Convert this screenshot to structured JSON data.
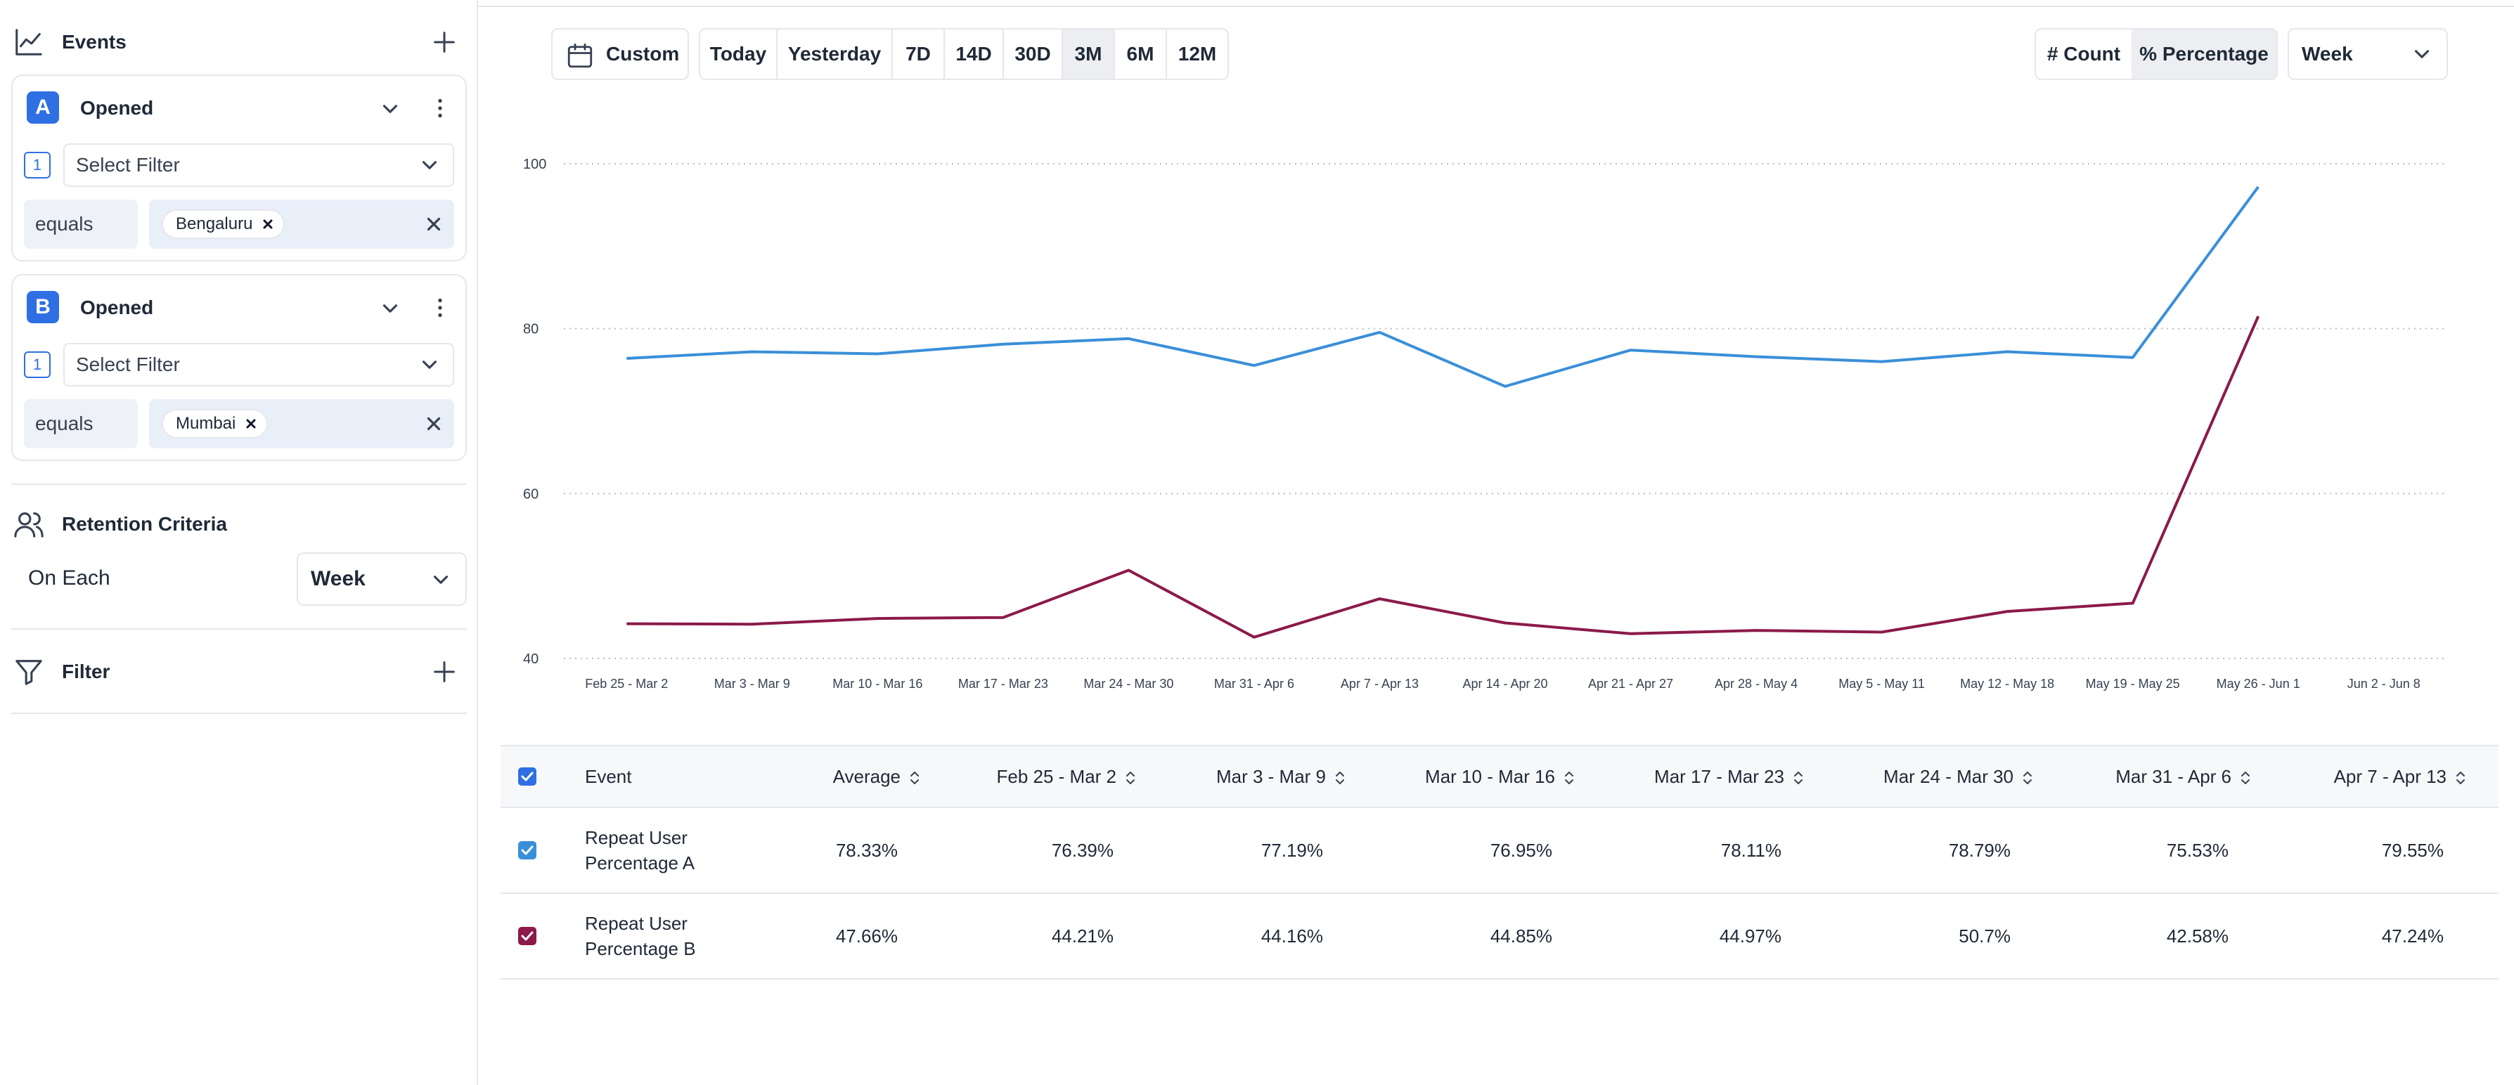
{
  "sidebar": {
    "events_title": "Events",
    "events": [
      {
        "badge": "A",
        "name": "Opened",
        "filter_num": "1",
        "filter_placeholder": "Select Filter",
        "operator": "equals",
        "value": "Bengaluru"
      },
      {
        "badge": "B",
        "name": "Opened",
        "filter_num": "1",
        "filter_placeholder": "Select Filter",
        "operator": "equals",
        "value": "Mumbai"
      }
    ],
    "retention_title": "Retention Criteria",
    "on_each_label": "On Each",
    "on_each_value": "Week",
    "filter_title": "Filter"
  },
  "toolbar": {
    "custom_label": "Custom",
    "ranges": [
      "Today",
      "Yesterday",
      "7D",
      "14D",
      "30D",
      "3M",
      "6M",
      "12M"
    ],
    "active_range": "3M",
    "modes": [
      "# Count",
      "% Percentage"
    ],
    "active_mode": "% Percentage",
    "period": "Week"
  },
  "colors": {
    "series_a": "#3a8fd9",
    "series_b": "#8b1a4a",
    "accent": "#2f6fe4"
  },
  "chart_data": {
    "type": "line",
    "categories": [
      "Feb 25 - Mar 2",
      "Mar 3 - Mar 9",
      "Mar 10 - Mar 16",
      "Mar 17 - Mar 23",
      "Mar 24 - Mar 30",
      "Mar 31 - Apr 6",
      "Apr 7 - Apr 13",
      "Apr 14 - Apr 20",
      "Apr 21 - Apr 27",
      "Apr 28 - May 4",
      "May 5 - May 11",
      "May 12 - May 18",
      "May 19 - May 25",
      "May 26 - Jun 1",
      "Jun 2 - Jun 8"
    ],
    "series": [
      {
        "name": "Repeat User Percentage A",
        "values": [
          76.39,
          77.19,
          76.95,
          78.11,
          78.79,
          75.53,
          79.55,
          73.0,
          77.4,
          76.6,
          76.0,
          77.2,
          76.5,
          97.2,
          null
        ]
      },
      {
        "name": "Repeat User Percentage B",
        "values": [
          44.21,
          44.16,
          44.85,
          44.97,
          50.7,
          42.58,
          47.24,
          44.3,
          43.0,
          43.4,
          43.2,
          45.7,
          46.7,
          81.5,
          null
        ]
      }
    ],
    "yticks": [
      40,
      60,
      80,
      100
    ],
    "ylim": [
      40,
      100
    ],
    "grid": true,
    "title": "",
    "xlabel": "",
    "ylabel": ""
  },
  "table": {
    "event_header": "Event",
    "columns": [
      "Average",
      "Feb 25 - Mar 2",
      "Mar 3 - Mar 9",
      "Mar 10 - Mar 16",
      "Mar 17 - Mar 23",
      "Mar 24 - Mar 30",
      "Mar 31 - Apr 6",
      "Apr 7 - Apr 13"
    ],
    "rows": [
      {
        "event": "Repeat User Percentage A",
        "values": [
          "78.33%",
          "76.39%",
          "77.19%",
          "76.95%",
          "78.11%",
          "78.79%",
          "75.53%",
          "79.55%"
        ]
      },
      {
        "event": "Repeat User Percentage B",
        "values": [
          "47.66%",
          "44.21%",
          "44.16%",
          "44.85%",
          "44.97%",
          "50.7%",
          "42.58%",
          "47.24%"
        ]
      }
    ]
  }
}
